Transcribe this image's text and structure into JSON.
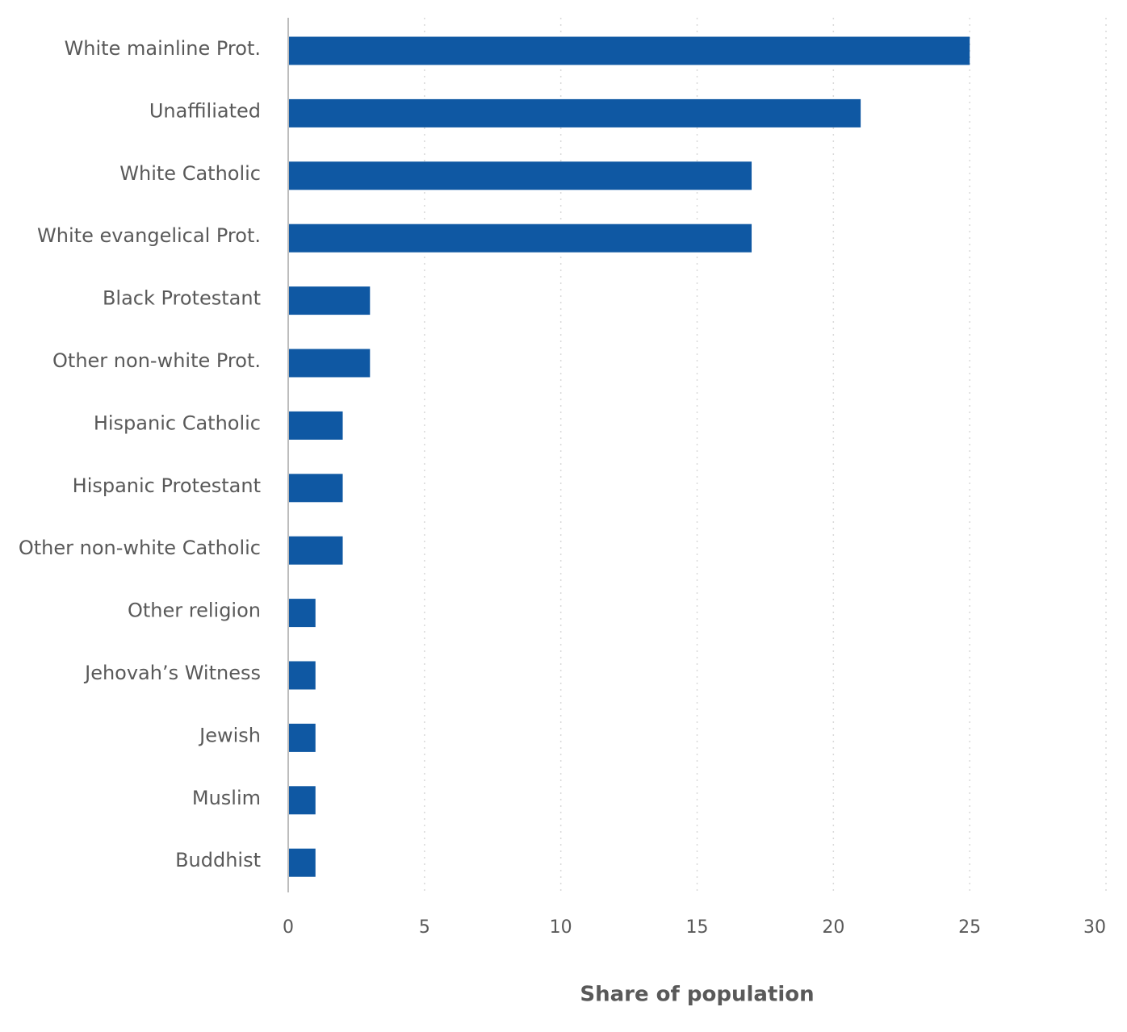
{
  "chart_data": {
    "type": "bar",
    "orientation": "horizontal",
    "title": "",
    "xlabel": "Share of population",
    "ylabel": "",
    "xlim": [
      0,
      30
    ],
    "xticks": [
      0,
      5,
      10,
      15,
      20,
      25,
      30
    ],
    "grid": "vertical dotted",
    "categories": [
      "White mainline Prot.",
      "Unaffiliated",
      "White Catholic",
      "White evangelical Prot.",
      "Black Protestant",
      "Other non-white Prot.",
      "Hispanic Catholic",
      "Hispanic Protestant",
      "Other non-white Catholic",
      "Other religion",
      "Jehovah’s Witness",
      "Jewish",
      "Muslim",
      "Buddhist"
    ],
    "values": [
      25,
      21,
      17,
      17,
      3,
      3,
      2,
      2,
      2,
      1,
      1,
      1,
      1,
      1
    ],
    "colors": {
      "bar": "#0F58A3",
      "text": "#595959",
      "axis": "#bdbdbd",
      "grid": "#d9d9d9"
    }
  }
}
